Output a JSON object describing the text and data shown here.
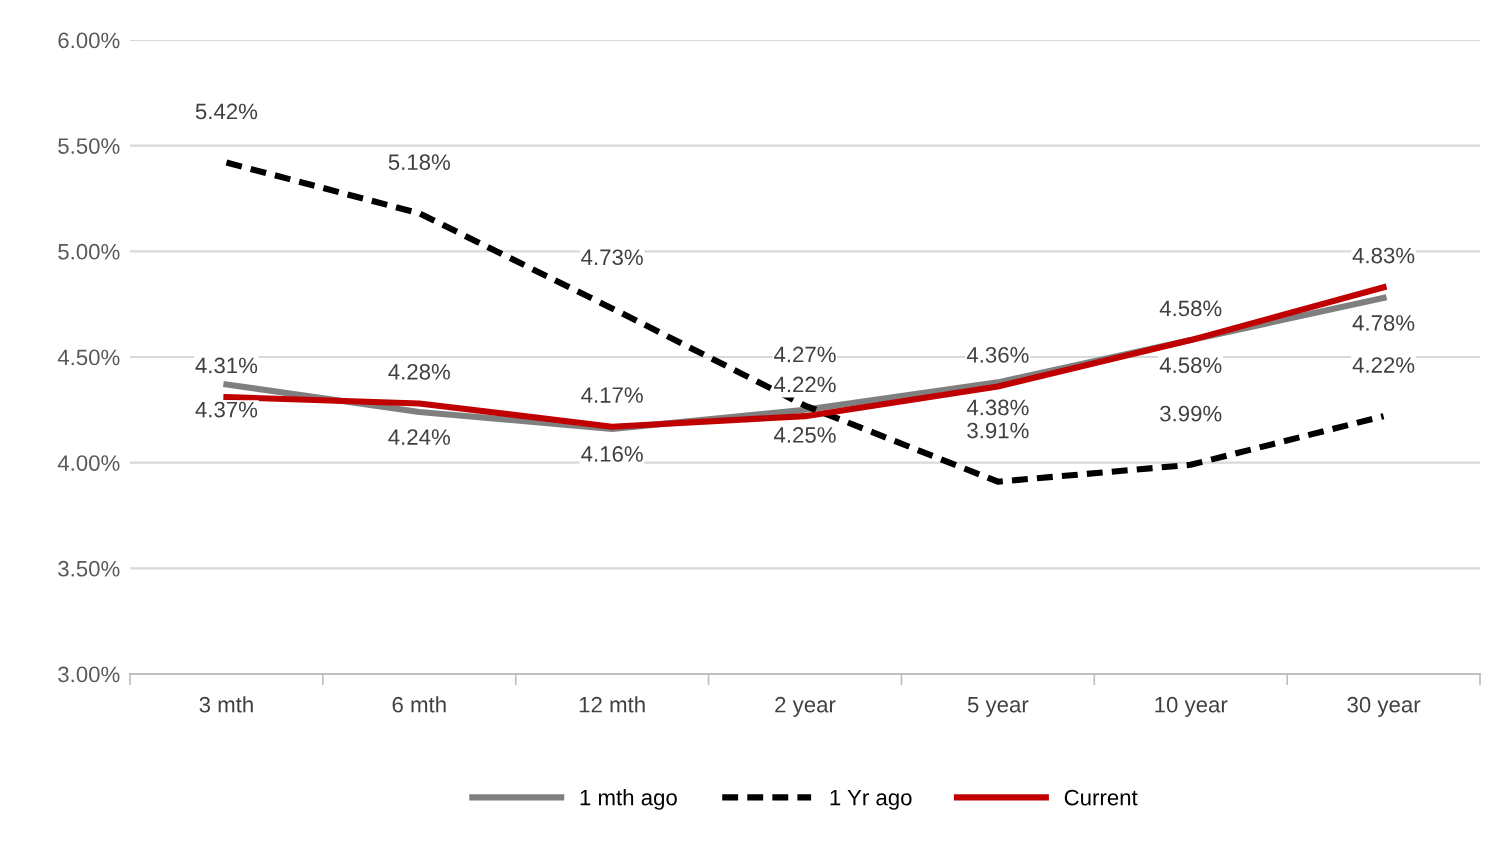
{
  "chart_data": {
    "type": "line",
    "categories": [
      "3 mth",
      "6 mth",
      "12 mth",
      "2 year",
      "5 year",
      "10 year",
      "30 year"
    ],
    "series": [
      {
        "name": "1 mth ago",
        "color": "#7f7f7f",
        "line_style": "solid",
        "values": [
          4.37,
          4.24,
          4.16,
          4.25,
          4.38,
          4.58,
          4.78
        ],
        "value_labels": [
          "4.37%",
          "4.24%",
          "4.16%",
          "4.25%",
          "4.38%",
          "4.58%",
          "4.78%"
        ]
      },
      {
        "name": "1 Yr ago",
        "color": "#000000",
        "line_style": "dashed",
        "values": [
          5.42,
          5.18,
          4.73,
          4.27,
          3.91,
          3.99,
          4.22
        ],
        "value_labels": [
          "5.42%",
          "5.18%",
          "4.73%",
          "4.27%",
          "3.91%",
          "3.99%",
          "4.22%"
        ]
      },
      {
        "name": "Current",
        "color": "#c00000",
        "line_style": "solid",
        "values": [
          4.31,
          4.28,
          4.17,
          4.22,
          4.36,
          4.58,
          4.83
        ],
        "value_labels": [
          "4.31%",
          "4.28%",
          "4.17%",
          "4.22%",
          "4.36%",
          "4.58%",
          "4.83%"
        ]
      }
    ],
    "ylim": [
      3.0,
      6.0
    ],
    "yticks": [
      {
        "value": 3.0,
        "label": "3.00%"
      },
      {
        "value": 3.5,
        "label": "3.50%"
      },
      {
        "value": 4.0,
        "label": "4.00%"
      },
      {
        "value": 4.5,
        "label": "4.50%"
      },
      {
        "value": 5.0,
        "label": "5.00%"
      },
      {
        "value": 5.5,
        "label": "5.50%"
      },
      {
        "value": 6.0,
        "label": "6.00%"
      }
    ],
    "grid": "y",
    "legend": "bottom",
    "marker": "none"
  }
}
